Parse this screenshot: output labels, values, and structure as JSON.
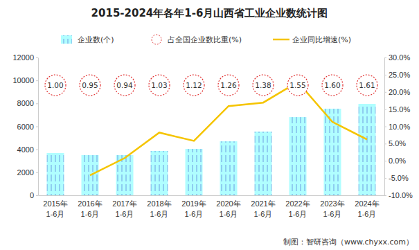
{
  "chart_data": {
    "type": "bar",
    "title": "2015-2024年各年1-6月山西省工业企业数统计图",
    "source": "制图：智研咨询（www.chyxx.com）",
    "categories": [
      "2015年1-6月",
      "2016年1-6月",
      "2017年1-6月",
      "2018年1-6月",
      "2019年1-6月",
      "2020年1-6月",
      "2021年1-6月",
      "2022年1-6月",
      "2023年1-6月",
      "2024年1-6月"
    ],
    "ylim": [
      0,
      12000
    ],
    "yticks": [
      0,
      2000,
      4000,
      6000,
      8000,
      10000,
      12000
    ],
    "y2lim": [
      -10,
      30
    ],
    "y2ticks": [
      {
        "value": -10,
        "label": "-10.0%"
      },
      {
        "value": -5,
        "label": "-5.0%"
      },
      {
        "value": 0,
        "label": "0.0%"
      },
      {
        "value": 5,
        "label": "5.0%"
      },
      {
        "value": 10,
        "label": "10.0%"
      },
      {
        "value": 15,
        "label": "15.0%"
      },
      {
        "value": 20,
        "label": "20.0%"
      },
      {
        "value": 25,
        "label": "25.0%"
      },
      {
        "value": 30,
        "label": "30.0%"
      }
    ],
    "grid": false,
    "legend": "top",
    "series": [
      {
        "name": "企业数(个)",
        "type": "bar",
        "color": "#8ecdf0",
        "values": [
          3680,
          3500,
          3500,
          3860,
          4040,
          4700,
          5550,
          6810,
          7540,
          7960
        ]
      },
      {
        "name": "占全国企业数比重(%)",
        "type": "scatter",
        "marker": "circle",
        "line_style": "dashed",
        "color": "#e03030",
        "data_labels": true,
        "values": [
          1.0,
          0.95,
          0.94,
          1.03,
          1.12,
          1.26,
          1.38,
          1.55,
          1.6,
          1.61
        ],
        "value_labels": [
          "1.00",
          "0.95",
          "0.94",
          "1.03",
          "1.12",
          "1.26",
          "1.38",
          "1.55",
          "1.60",
          "1.61"
        ]
      },
      {
        "name": "企业同比增速(%)",
        "type": "line",
        "axis": "y2",
        "color": "#f5c400",
        "values": [
          null,
          -4.2,
          0.8,
          8.2,
          5.8,
          15.9,
          16.9,
          22.9,
          11.3,
          6.2
        ]
      }
    ]
  }
}
